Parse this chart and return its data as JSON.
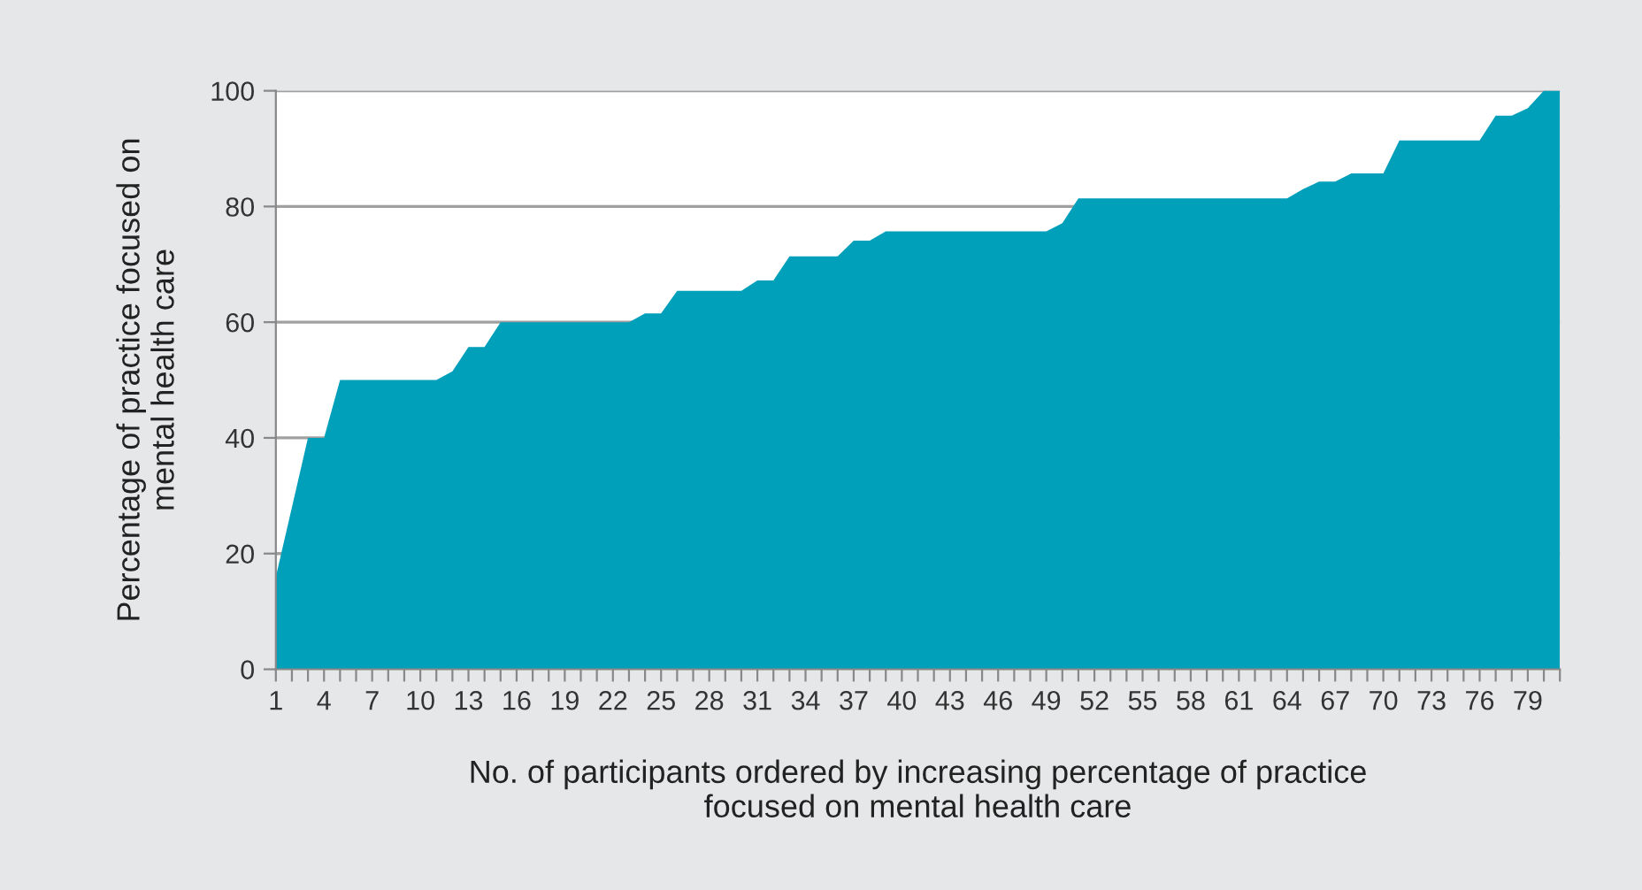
{
  "chart_data": {
    "type": "area",
    "xlabel": "No. of participants ordered by increasing percentage of practice\nfocused on mental health care",
    "ylabel": "Percentage of practice focused on\nmental health care",
    "x": [
      1,
      2,
      3,
      4,
      5,
      6,
      7,
      8,
      9,
      10,
      11,
      12,
      13,
      14,
      15,
      16,
      17,
      18,
      19,
      20,
      21,
      22,
      23,
      24,
      25,
      26,
      27,
      28,
      29,
      30,
      31,
      32,
      33,
      34,
      35,
      36,
      37,
      38,
      39,
      40,
      41,
      42,
      43,
      44,
      45,
      46,
      47,
      48,
      49,
      50,
      51,
      52,
      53,
      54,
      55,
      56,
      57,
      58,
      59,
      60,
      61,
      62,
      63,
      64,
      65,
      66,
      67,
      68,
      69,
      70,
      71,
      72,
      73,
      74,
      75,
      76,
      77,
      78,
      79,
      80,
      81
    ],
    "series": [
      {
        "color": "#009fba",
        "values": [
          16,
          28,
          40,
          40,
          50,
          50,
          50,
          50,
          50,
          50,
          50,
          51.5,
          55.7,
          55.7,
          60,
          60,
          60,
          60,
          60,
          60,
          60,
          60,
          60,
          61.5,
          61.5,
          65.4,
          65.4,
          65.4,
          65.4,
          65.4,
          67.2,
          67.2,
          71.4,
          71.4,
          71.4,
          71.4,
          74.1,
          74.1,
          75.7,
          75.7,
          75.7,
          75.7,
          75.7,
          75.7,
          75.7,
          75.7,
          75.7,
          75.7,
          75.7,
          77.1,
          81.4,
          81.4,
          81.4,
          81.4,
          81.4,
          81.4,
          81.4,
          81.4,
          81.4,
          81.4,
          81.4,
          81.4,
          81.4,
          81.4,
          83,
          84.3,
          84.3,
          85.7,
          85.7,
          85.7,
          91.4,
          91.4,
          91.4,
          91.4,
          91.4,
          91.4,
          95.7,
          95.7,
          97,
          100,
          100
        ]
      }
    ],
    "xlim": [
      1,
      81
    ],
    "ylim": [
      0,
      100
    ],
    "xticks": [
      1,
      {
        "value": 2,
        "label": null
      },
      {
        "value": 3,
        "label": null
      },
      4,
      {
        "value": 5,
        "label": null
      },
      {
        "value": 6,
        "label": null
      },
      7,
      {
        "value": 8,
        "label": null
      },
      {
        "value": 9,
        "label": null
      },
      10,
      {
        "value": 11,
        "label": null
      },
      {
        "value": 12,
        "label": null
      },
      13,
      {
        "value": 14,
        "label": null
      },
      {
        "value": 15,
        "label": null
      },
      16,
      {
        "value": 17,
        "label": null
      },
      {
        "value": 18,
        "label": null
      },
      19,
      {
        "value": 20,
        "label": null
      },
      {
        "value": 21,
        "label": null
      },
      22,
      {
        "value": 23,
        "label": null
      },
      {
        "value": 24,
        "label": null
      },
      25,
      {
        "value": 26,
        "label": null
      },
      {
        "value": 27,
        "label": null
      },
      28,
      {
        "value": 29,
        "label": null
      },
      {
        "value": 30,
        "label": null
      },
      31,
      {
        "value": 32,
        "label": null
      },
      {
        "value": 33,
        "label": null
      },
      34,
      {
        "value": 35,
        "label": null
      },
      {
        "value": 36,
        "label": null
      },
      37,
      {
        "value": 38,
        "label": null
      },
      {
        "value": 39,
        "label": null
      },
      40,
      {
        "value": 41,
        "label": null
      },
      {
        "value": 42,
        "label": null
      },
      43,
      {
        "value": 44,
        "label": null
      },
      {
        "value": 45,
        "label": null
      },
      46,
      {
        "value": 47,
        "label": null
      },
      {
        "value": 48,
        "label": null
      },
      49,
      {
        "value": 50,
        "label": null
      },
      {
        "value": 51,
        "label": null
      },
      52,
      {
        "value": 53,
        "label": null
      },
      {
        "value": 54,
        "label": null
      },
      55,
      {
        "value": 56,
        "label": null
      },
      {
        "value": 57,
        "label": null
      },
      58,
      {
        "value": 59,
        "label": null
      },
      {
        "value": 60,
        "label": null
      },
      61,
      {
        "value": 62,
        "label": null
      },
      {
        "value": 63,
        "label": null
      },
      64,
      {
        "value": 65,
        "label": null
      },
      {
        "value": 66,
        "label": null
      },
      67,
      {
        "value": 68,
        "label": null
      },
      {
        "value": 69,
        "label": null
      },
      70,
      {
        "value": 71,
        "label": null
      },
      {
        "value": 72,
        "label": null
      },
      73,
      {
        "value": 74,
        "label": null
      },
      {
        "value": 75,
        "label": null
      },
      76,
      {
        "value": 77,
        "label": null
      },
      {
        "value": 78,
        "label": null
      },
      79,
      {
        "value": 80,
        "label": null
      },
      {
        "value": 81,
        "label": null
      }
    ],
    "yticks": [
      0,
      20,
      40,
      60,
      80,
      100
    ],
    "grid": "y"
  }
}
